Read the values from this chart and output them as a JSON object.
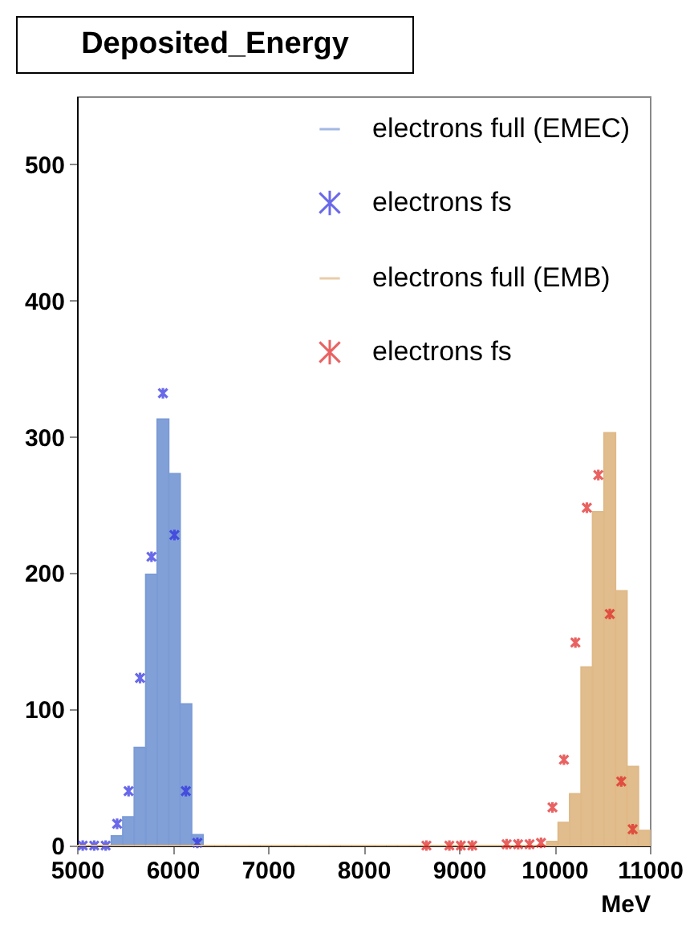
{
  "chart_data": {
    "type": "histogram",
    "title": "Deposited_Energy",
    "xlabel": "MeV",
    "bins": [
      5000,
      5120,
      5240,
      5360,
      5480,
      5600,
      5720,
      5840,
      5960,
      6080,
      6200,
      6320,
      6440,
      6560,
      6680,
      6800,
      6920,
      7040,
      7160,
      7280,
      7400,
      7520,
      7640,
      7760,
      7880,
      8000,
      8120,
      8240,
      8360,
      8480,
      8600,
      8720,
      8840,
      8960,
      9080,
      9200,
      9320,
      9440,
      9560,
      9680,
      9800,
      9920,
      10040,
      10160,
      10280,
      10400,
      10520,
      10640,
      10760,
      10880,
      11000
    ],
    "series": [
      {
        "name": "electrons full (EMEC)",
        "type": "histogram",
        "color": "#7b9bd6",
        "values": [
          0,
          0,
          0,
          7,
          21,
          72,
          199,
          313,
          273,
          104,
          8,
          0,
          0,
          0,
          0,
          0,
          0,
          0,
          0,
          0,
          0,
          0,
          0,
          0,
          0,
          0,
          0,
          0,
          0,
          0,
          0,
          0,
          0,
          0,
          0,
          0,
          0,
          0,
          0,
          0,
          0,
          0,
          0,
          0,
          0,
          0,
          0,
          0,
          0,
          0
        ]
      },
      {
        "name": "electrons fs",
        "type": "scatter",
        "color": "#2a2ae0",
        "x": [
          5060,
          5180,
          5300,
          5420,
          5540,
          5660,
          5780,
          5900,
          6020,
          6140,
          6260
        ],
        "values": [
          0,
          0,
          0,
          16,
          40,
          123,
          212,
          332,
          228,
          40,
          2
        ]
      },
      {
        "name": "electrons full (EMB)",
        "type": "histogram",
        "color": "#dfb987",
        "values": [
          0,
          0,
          0,
          0,
          0,
          0,
          0,
          0,
          0,
          0,
          0,
          0,
          0,
          0,
          0,
          0,
          0,
          0,
          0,
          0,
          0,
          0,
          0,
          0,
          0,
          0,
          0,
          0,
          0,
          0,
          0,
          0,
          0,
          0,
          0,
          0,
          0,
          0,
          0,
          0,
          0,
          3,
          17,
          38,
          131,
          245,
          303,
          187,
          58,
          11
        ]
      },
      {
        "name": "electrons fs",
        "type": "scatter",
        "color": "#e02020",
        "x": [
          8660,
          8900,
          9020,
          9140,
          9500,
          9620,
          9740,
          9860,
          9980,
          10100,
          10220,
          10340,
          10460,
          10580,
          10700,
          10820
        ],
        "values": [
          0,
          0,
          0,
          0,
          1,
          1,
          1,
          2,
          28,
          63,
          149,
          248,
          272,
          170,
          47,
          12
        ]
      }
    ],
    "xlim": [
      5000,
      11000
    ],
    "ylim": [
      0,
      550
    ],
    "xticks": [
      5000,
      6000,
      7000,
      8000,
      9000,
      10000,
      11000
    ],
    "yticks": [
      0,
      100,
      200,
      300,
      400,
      500
    ],
    "marker": "cross",
    "legend": "top right",
    "grid": false
  }
}
